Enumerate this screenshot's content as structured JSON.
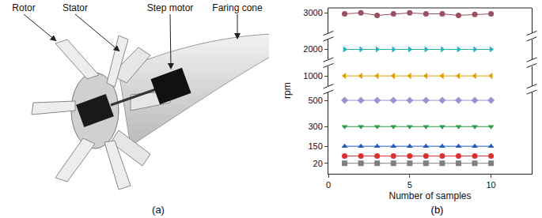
{
  "figure_a": {
    "labels": [
      "Rotor",
      "Stator",
      "Step motor",
      "Faring cone"
    ],
    "caption": "(a)"
  },
  "chart_data": {
    "type": "line",
    "caption": "(b)",
    "x_label": "Number of samples",
    "y_label": "rpm",
    "x": [
      1,
      2,
      3,
      4,
      5,
      6,
      7,
      8,
      9,
      10
    ],
    "xlim": [
      0,
      12.5
    ],
    "xticks": [
      0,
      5,
      10
    ],
    "grid": false,
    "y_segments": [
      {
        "ylim": [
          -60,
          560
        ],
        "yticks": [
          20,
          150,
          300,
          500
        ]
      },
      {
        "ylim": [
          900,
          1100
        ],
        "yticks": [
          1000
        ]
      },
      {
        "ylim": [
          1900,
          2100
        ],
        "yticks": [
          2000
        ]
      },
      {
        "ylim": [
          2800,
          3050
        ],
        "yticks": [
          3000
        ]
      }
    ],
    "series": [
      {
        "color": "#7f7f7f",
        "marker": "square",
        "values": [
          20,
          20,
          20,
          20,
          20,
          20,
          20,
          20,
          20,
          20
        ]
      },
      {
        "color": "#e03030",
        "marker": "circle",
        "values": [
          75,
          75,
          75,
          75,
          75,
          75,
          75,
          75,
          75,
          75
        ]
      },
      {
        "color": "#1f5fbf",
        "marker": "triangle-up",
        "values": [
          150,
          150,
          150,
          150,
          150,
          150,
          150,
          150,
          150,
          150
        ]
      },
      {
        "color": "#2e9e4a",
        "marker": "triangle-down",
        "values": [
          300,
          300,
          300,
          300,
          300,
          300,
          300,
          300,
          300,
          300
        ]
      },
      {
        "color": "#a090d0",
        "marker": "diamond",
        "values": [
          500,
          500,
          500,
          500,
          500,
          500,
          500,
          500,
          500,
          500
        ]
      },
      {
        "color": "#e0a000",
        "marker": "triangle-left",
        "values": [
          1000,
          1000,
          1000,
          1000,
          1000,
          1000,
          1000,
          1000,
          1000,
          1000
        ]
      },
      {
        "color": "#20b0c0",
        "marker": "triangle-right",
        "values": [
          2000,
          2000,
          2000,
          2000,
          2000,
          2000,
          2000,
          2000,
          2000,
          2000
        ]
      },
      {
        "color": "#9a5060",
        "marker": "circle",
        "values": [
          2990,
          3000,
          2975,
          2990,
          3000,
          2990,
          2990,
          2975,
          2985,
          2990
        ]
      }
    ]
  }
}
